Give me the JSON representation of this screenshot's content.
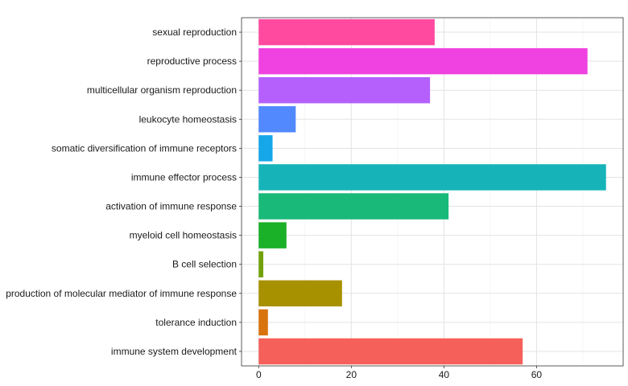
{
  "chart_data": {
    "type": "bar",
    "orientation": "horizontal",
    "title": "",
    "xlabel": "",
    "ylabel": "",
    "xlim": [
      -3.7,
      78.7
    ],
    "x_ticks": [
      0,
      20,
      40,
      60
    ],
    "x_tick_labels": [
      "0",
      "20",
      "40",
      "60"
    ],
    "grid": true,
    "legend": "none",
    "categories": [
      "sexual reproduction",
      "reproductive process",
      "multicellular organism reproduction",
      "leukocyte homeostasis",
      "somatic diversification of immune receptors",
      "immune effector process",
      "activation of immune response",
      "myeloid cell homeostasis",
      "B cell selection",
      "production of molecular mediator of immune response",
      "tolerance induction",
      "immune system development"
    ],
    "values": [
      38,
      71,
      37,
      8,
      3,
      75,
      41,
      6,
      1,
      18,
      2,
      57
    ],
    "colors": [
      "#FF4AA0",
      "#EF42E0",
      "#B560FD",
      "#5289FF",
      "#15A7E9",
      "#16B4B9",
      "#19B97A",
      "#1AB028",
      "#72A10B",
      "#A79100",
      "#D9730E",
      "#F5605A"
    ]
  }
}
